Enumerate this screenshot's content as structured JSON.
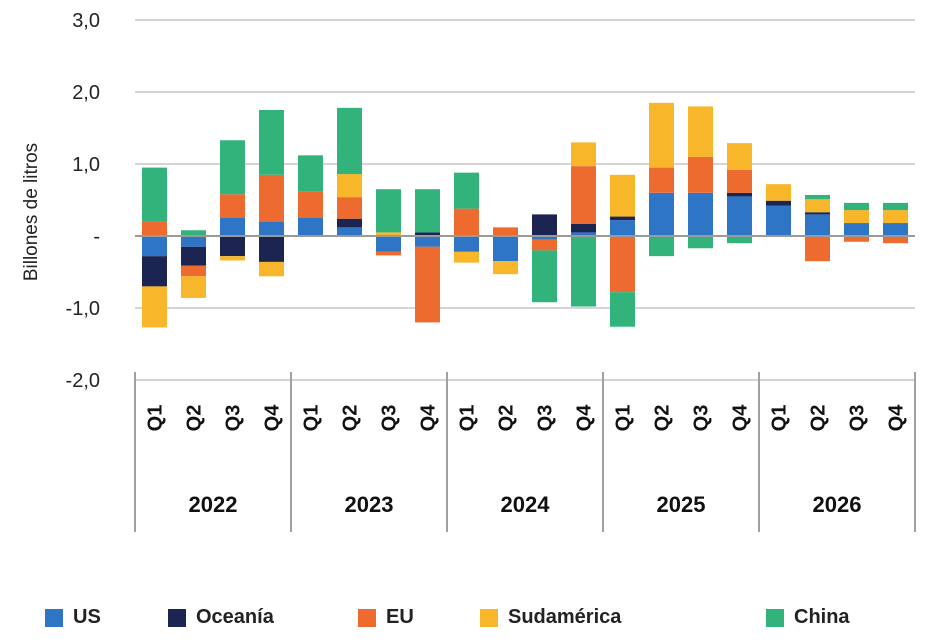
{
  "chart_data": {
    "type": "bar",
    "stacked": true,
    "ylabel": "Billones de litros",
    "ylim": [
      -2.0,
      3.0
    ],
    "yticks": [
      "3,0",
      "2,0",
      "1,0",
      "-",
      "-1,0",
      "-2,0"
    ],
    "ytick_values": [
      3,
      2,
      1,
      0,
      -1,
      -2
    ],
    "years": [
      "2022",
      "2023",
      "2024",
      "2025",
      "2026"
    ],
    "quarters": [
      "Q1",
      "Q2",
      "Q3",
      "Q4"
    ],
    "categories": [
      "2022 Q1",
      "2022 Q2",
      "2022 Q3",
      "2022 Q4",
      "2023 Q1",
      "2023 Q2",
      "2023 Q3",
      "2023 Q4",
      "2024 Q1",
      "2024 Q2",
      "2024 Q3",
      "2024 Q4",
      "2025 Q1",
      "2025 Q2",
      "2025 Q3",
      "2025 Q4",
      "2026 Q1",
      "2026 Q2",
      "2026 Q3",
      "2026 Q4"
    ],
    "series": [
      {
        "name": "US",
        "color": "#2e75c5",
        "values": [
          -0.28,
          -0.15,
          0.25,
          0.2,
          0.25,
          0.12,
          -0.22,
          -0.15,
          -0.22,
          -0.35,
          -0.05,
          0.05,
          0.22,
          0.6,
          0.6,
          0.55,
          0.42,
          0.3,
          0.18,
          0.18
        ]
      },
      {
        "name": "Oceanía",
        "color": "#1c2451",
        "values": [
          -0.42,
          -0.26,
          -0.28,
          -0.36,
          0.0,
          0.12,
          0.0,
          0.05,
          0.0,
          0.0,
          0.3,
          0.12,
          0.05,
          0.0,
          0.0,
          0.05,
          0.07,
          0.03,
          0.0,
          0.0
        ]
      },
      {
        "name": "EU",
        "color": "#ed6b2f",
        "values": [
          0.2,
          -0.15,
          0.33,
          0.65,
          0.37,
          0.3,
          -0.05,
          -1.05,
          0.38,
          0.12,
          -0.15,
          0.8,
          -0.78,
          0.35,
          0.5,
          0.32,
          0.0,
          -0.35,
          -0.08,
          -0.1
        ]
      },
      {
        "name": "Sudamérica",
        "color": "#f8b62a",
        "values": [
          -0.57,
          -0.3,
          -0.06,
          -0.2,
          0.0,
          0.32,
          0.05,
          0.0,
          -0.15,
          -0.18,
          0.0,
          0.33,
          0.58,
          0.9,
          0.7,
          0.37,
          0.23,
          0.18,
          0.18,
          0.18
        ]
      },
      {
        "name": "China",
        "color": "#33b37c",
        "values": [
          0.75,
          0.08,
          0.75,
          0.9,
          0.5,
          0.92,
          0.6,
          0.6,
          0.5,
          0.0,
          -0.72,
          -0.98,
          -0.48,
          -0.28,
          -0.17,
          -0.1,
          0.0,
          0.06,
          0.1,
          0.1
        ]
      }
    ],
    "legend_position": "bottom"
  }
}
